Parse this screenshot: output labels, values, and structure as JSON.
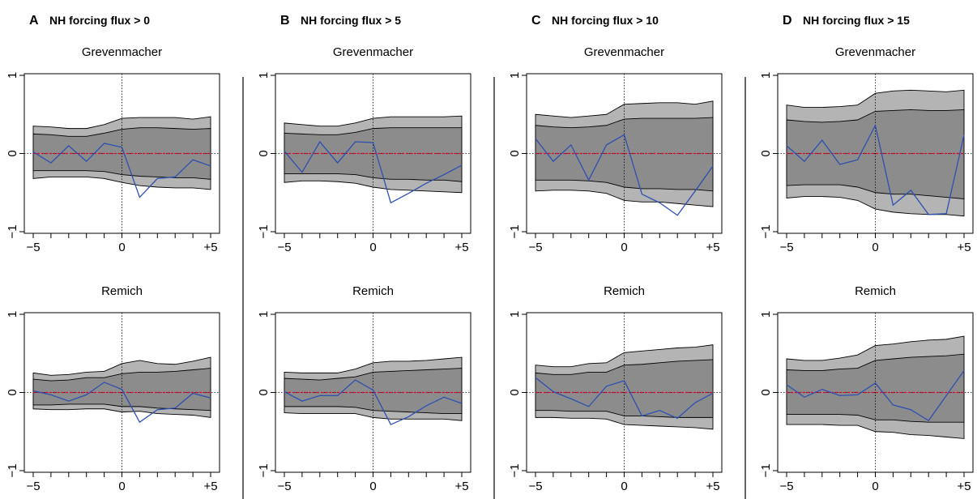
{
  "colors": {
    "outer_band": "#b4b4b4",
    "inner_band": "#8c8c8c",
    "observed": "#2f4fb0",
    "zero_line": "#e0002a",
    "axis": "#000000"
  },
  "panels": [
    {
      "letter": "A",
      "title": "NH forcing flux > 0",
      "subplots": [
        {
          "title": "Grevenmacher",
          "x": [
            -5,
            -4,
            -3,
            -2,
            -1,
            0,
            1,
            2,
            3,
            4,
            5
          ],
          "observed": [
            0.02,
            -0.12,
            0.1,
            -0.1,
            0.13,
            0.08,
            -0.56,
            -0.32,
            -0.3,
            -0.08,
            -0.16
          ],
          "ci_outer_upper": [
            0.35,
            0.34,
            0.32,
            0.32,
            0.37,
            0.45,
            0.46,
            0.46,
            0.46,
            0.44,
            0.47
          ],
          "ci_inner_upper": [
            0.25,
            0.24,
            0.22,
            0.22,
            0.26,
            0.31,
            0.33,
            0.33,
            0.32,
            0.31,
            0.32
          ],
          "ci_inner_lower": [
            -0.22,
            -0.22,
            -0.22,
            -0.22,
            -0.23,
            -0.27,
            -0.29,
            -0.3,
            -0.31,
            -0.31,
            -0.33
          ],
          "ci_outer_lower": [
            -0.32,
            -0.3,
            -0.3,
            -0.3,
            -0.32,
            -0.37,
            -0.41,
            -0.43,
            -0.44,
            -0.44,
            -0.46
          ]
        },
        {
          "title": "Remich",
          "x": [
            -5,
            -4,
            -3,
            -2,
            -1,
            0,
            1,
            2,
            3,
            4,
            5
          ],
          "observed": [
            0.02,
            -0.03,
            -0.11,
            -0.03,
            0.13,
            0.04,
            -0.38,
            -0.22,
            -0.2,
            -0.01,
            -0.07
          ],
          "ci_outer_upper": [
            0.25,
            0.22,
            0.23,
            0.26,
            0.27,
            0.37,
            0.41,
            0.37,
            0.36,
            0.4,
            0.45
          ],
          "ci_inner_upper": [
            0.17,
            0.15,
            0.16,
            0.19,
            0.19,
            0.24,
            0.26,
            0.26,
            0.27,
            0.29,
            0.31
          ],
          "ci_inner_lower": [
            -0.16,
            -0.16,
            -0.15,
            -0.15,
            -0.15,
            -0.18,
            -0.18,
            -0.2,
            -0.21,
            -0.22,
            -0.23
          ],
          "ci_outer_lower": [
            -0.21,
            -0.22,
            -0.22,
            -0.21,
            -0.21,
            -0.25,
            -0.24,
            -0.27,
            -0.28,
            -0.29,
            -0.32
          ]
        }
      ]
    },
    {
      "letter": "B",
      "title": "NH forcing flux > 5",
      "subplots": [
        {
          "title": "Grevenmacher",
          "x": [
            -5,
            -4,
            -3,
            -2,
            -1,
            0,
            1,
            2,
            3,
            4,
            5
          ],
          "observed": [
            0.03,
            -0.24,
            0.15,
            -0.12,
            0.15,
            0.14,
            -0.63,
            -0.51,
            -0.38,
            -0.27,
            -0.15
          ],
          "ci_outer_upper": [
            0.39,
            0.37,
            0.35,
            0.35,
            0.39,
            0.45,
            0.47,
            0.47,
            0.47,
            0.47,
            0.48
          ],
          "ci_inner_upper": [
            0.26,
            0.25,
            0.24,
            0.24,
            0.27,
            0.32,
            0.33,
            0.33,
            0.33,
            0.33,
            0.33
          ],
          "ci_inner_lower": [
            -0.26,
            -0.26,
            -0.26,
            -0.26,
            -0.27,
            -0.31,
            -0.33,
            -0.33,
            -0.34,
            -0.34,
            -0.36
          ],
          "ci_outer_lower": [
            -0.37,
            -0.35,
            -0.35,
            -0.36,
            -0.38,
            -0.43,
            -0.46,
            -0.47,
            -0.48,
            -0.49,
            -0.5
          ]
        },
        {
          "title": "Remich",
          "x": [
            -5,
            -4,
            -3,
            -2,
            -1,
            0,
            1,
            2,
            3,
            4,
            5
          ],
          "observed": [
            0.01,
            -0.11,
            -0.04,
            -0.04,
            0.16,
            0.03,
            -0.41,
            -0.31,
            -0.17,
            -0.06,
            -0.14
          ],
          "ci_outer_upper": [
            0.26,
            0.25,
            0.25,
            0.25,
            0.3,
            0.38,
            0.4,
            0.4,
            0.41,
            0.43,
            0.45
          ],
          "ci_inner_upper": [
            0.18,
            0.17,
            0.16,
            0.18,
            0.2,
            0.26,
            0.27,
            0.28,
            0.29,
            0.3,
            0.31
          ],
          "ci_inner_lower": [
            -0.18,
            -0.18,
            -0.18,
            -0.18,
            -0.19,
            -0.23,
            -0.24,
            -0.25,
            -0.26,
            -0.27,
            -0.27
          ],
          "ci_outer_lower": [
            -0.26,
            -0.27,
            -0.27,
            -0.27,
            -0.27,
            -0.32,
            -0.34,
            -0.34,
            -0.34,
            -0.34,
            -0.36
          ]
        }
      ]
    },
    {
      "letter": "C",
      "title": "NH forcing flux > 10",
      "subplots": [
        {
          "title": "Grevenmacher",
          "x": [
            -5,
            -4,
            -3,
            -2,
            -1,
            0,
            1,
            2,
            3,
            4,
            5
          ],
          "observed": [
            0.19,
            -0.1,
            0.11,
            -0.34,
            0.11,
            0.24,
            -0.52,
            -0.63,
            -0.79,
            -0.48,
            -0.16
          ],
          "ci_outer_upper": [
            0.5,
            0.48,
            0.46,
            0.48,
            0.5,
            0.63,
            0.64,
            0.65,
            0.65,
            0.63,
            0.67
          ],
          "ci_inner_upper": [
            0.36,
            0.34,
            0.33,
            0.34,
            0.36,
            0.44,
            0.45,
            0.45,
            0.45,
            0.45,
            0.46
          ],
          "ci_inner_lower": [
            -0.34,
            -0.34,
            -0.34,
            -0.35,
            -0.37,
            -0.43,
            -0.45,
            -0.45,
            -0.46,
            -0.46,
            -0.48
          ],
          "ci_outer_lower": [
            -0.48,
            -0.47,
            -0.47,
            -0.48,
            -0.51,
            -0.6,
            -0.62,
            -0.62,
            -0.64,
            -0.66,
            -0.68
          ]
        },
        {
          "title": "Remich",
          "x": [
            -5,
            -4,
            -3,
            -2,
            -1,
            0,
            1,
            2,
            3,
            4,
            5
          ],
          "observed": [
            0.19,
            0.01,
            -0.08,
            -0.18,
            0.08,
            0.15,
            -0.3,
            -0.23,
            -0.33,
            -0.13,
            -0.01
          ],
          "ci_outer_upper": [
            0.35,
            0.33,
            0.33,
            0.37,
            0.38,
            0.51,
            0.53,
            0.55,
            0.57,
            0.58,
            0.61
          ],
          "ci_inner_upper": [
            0.25,
            0.23,
            0.23,
            0.26,
            0.26,
            0.35,
            0.36,
            0.38,
            0.4,
            0.41,
            0.42
          ],
          "ci_inner_lower": [
            -0.23,
            -0.23,
            -0.24,
            -0.24,
            -0.24,
            -0.3,
            -0.3,
            -0.31,
            -0.32,
            -0.32,
            -0.32
          ],
          "ci_outer_lower": [
            -0.32,
            -0.32,
            -0.33,
            -0.33,
            -0.34,
            -0.41,
            -0.42,
            -0.43,
            -0.44,
            -0.45,
            -0.47
          ]
        }
      ]
    },
    {
      "letter": "D",
      "title": "NH forcing flux > 15",
      "subplots": [
        {
          "title": "Grevenmacher",
          "x": [
            -5,
            -4,
            -3,
            -2,
            -1,
            0,
            1,
            2,
            3,
            4,
            5
          ],
          "observed": [
            0.1,
            -0.1,
            0.17,
            -0.14,
            -0.08,
            0.36,
            -0.66,
            -0.47,
            -0.78,
            -0.77,
            0.24
          ],
          "ci_outer_upper": [
            0.62,
            0.59,
            0.59,
            0.6,
            0.62,
            0.77,
            0.8,
            0.81,
            0.8,
            0.79,
            0.81
          ],
          "ci_inner_upper": [
            0.43,
            0.41,
            0.4,
            0.41,
            0.43,
            0.54,
            0.55,
            0.56,
            0.55,
            0.55,
            0.56
          ],
          "ci_inner_lower": [
            -0.41,
            -0.4,
            -0.4,
            -0.4,
            -0.43,
            -0.5,
            -0.52,
            -0.52,
            -0.54,
            -0.56,
            -0.58
          ],
          "ci_outer_lower": [
            -0.57,
            -0.55,
            -0.55,
            -0.56,
            -0.6,
            -0.71,
            -0.75,
            -0.77,
            -0.78,
            -0.78,
            -0.8
          ]
        },
        {
          "title": "Remich",
          "x": [
            -5,
            -4,
            -3,
            -2,
            -1,
            0,
            1,
            2,
            3,
            4,
            5
          ],
          "observed": [
            0.1,
            -0.06,
            0.04,
            -0.04,
            -0.03,
            0.12,
            -0.16,
            -0.22,
            -0.36,
            -0.04,
            0.28
          ],
          "ci_outer_upper": [
            0.43,
            0.41,
            0.41,
            0.44,
            0.48,
            0.6,
            0.62,
            0.65,
            0.67,
            0.68,
            0.72
          ],
          "ci_inner_upper": [
            0.29,
            0.28,
            0.28,
            0.3,
            0.31,
            0.41,
            0.43,
            0.45,
            0.46,
            0.47,
            0.49
          ],
          "ci_inner_lower": [
            -0.28,
            -0.28,
            -0.28,
            -0.28,
            -0.29,
            -0.35,
            -0.35,
            -0.37,
            -0.38,
            -0.38,
            -0.38
          ],
          "ci_outer_lower": [
            -0.41,
            -0.41,
            -0.41,
            -0.42,
            -0.42,
            -0.5,
            -0.51,
            -0.54,
            -0.55,
            -0.57,
            -0.59
          ]
        }
      ]
    }
  ],
  "chart_data": {
    "type": "area",
    "panel_count": 4,
    "rows": [
      "Grevenmacher",
      "Remich"
    ],
    "xlim": [
      -5,
      5
    ],
    "ylim": [
      -1,
      1
    ],
    "x_tick_labels": [
      "−5",
      "0",
      "+5"
    ],
    "y_tick_labels": [
      "−1",
      "0",
      "1"
    ],
    "reference_lines": {
      "x": 0,
      "y": 0
    },
    "grid": false
  }
}
